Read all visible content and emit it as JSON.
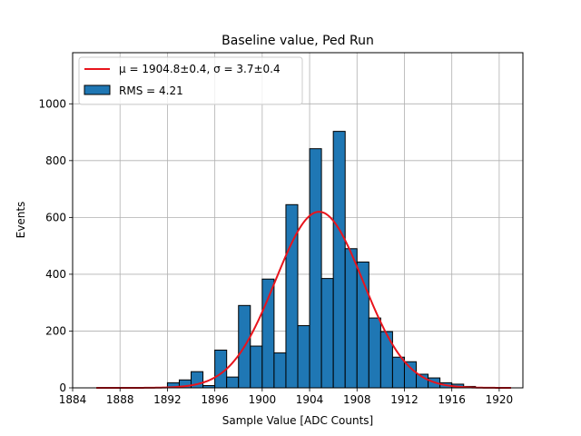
{
  "chart_data": {
    "type": "bar",
    "title": "Baseline value, Ped Run",
    "xlabel": "Sample Value [ADC Counts]",
    "ylabel": "Events",
    "xlim": [
      1884,
      1922
    ],
    "ylim": [
      0,
      1180
    ],
    "xticks": [
      1884,
      1888,
      1892,
      1896,
      1900,
      1904,
      1908,
      1912,
      1916,
      1920
    ],
    "yticks": [
      0,
      200,
      400,
      600,
      800,
      1000
    ],
    "grid": true,
    "legend_position": "top-left",
    "bin_width": 1,
    "bar_color": "#1f77b4",
    "fit_color": "#e8141c",
    "histogram": {
      "name": "RMS = 4.21",
      "bins": [
        1892,
        1893,
        1894,
        1895,
        1896,
        1897,
        1898,
        1899,
        1900,
        1901,
        1902,
        1903,
        1904,
        1905,
        1906,
        1907,
        1908,
        1909,
        1910,
        1911,
        1912,
        1913,
        1914,
        1915,
        1916,
        1917
      ],
      "values": [
        18,
        28,
        57,
        8,
        133,
        38,
        290,
        147,
        383,
        123,
        645,
        219,
        842,
        385,
        903,
        490,
        443,
        246,
        198,
        108,
        92,
        48,
        35,
        18,
        13,
        5
      ]
    },
    "fit": {
      "name": "μ = 1904.8±0.4, σ = 3.7±0.4",
      "mu": 1904.8,
      "sigma": 3.7,
      "amplitude": 620,
      "x_range": [
        1886,
        1921
      ]
    }
  }
}
